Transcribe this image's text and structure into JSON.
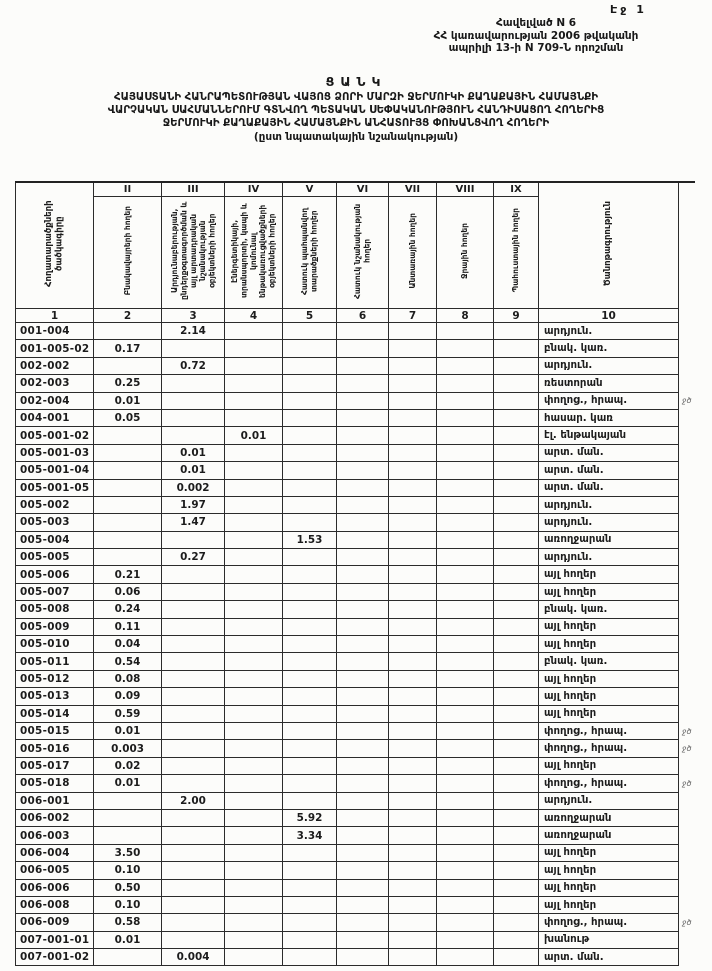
{
  "page": {
    "page_label": "Էջ 1"
  },
  "appendix": {
    "lines": [
      "Հավելված N 6",
      "ՀՀ կառավարության 2006 թվականի",
      "ապրիլի 13-ի N 709-Ն որոշման"
    ]
  },
  "title": {
    "heading": "ՑԱՆԿ",
    "lines": [
      "ՀԱՅԱՍՏԱՆԻ ՀԱՆՐԱՊԵՏՈՒԹՅԱՆ ՎԱՅՈՑ ՁՈՐԻ ՄԱՐԶԻ ՋԵՐՄՈՒԿԻ ՔԱՂԱՔԱՅԻՆ ՀԱՄԱՅՆՔԻ",
      "ՎԱՐՉԱԿԱՆ ՍԱՀՄԱՆՆԵՐՈՒՄ ԳՏՆՎՈՂ ՊԵՏԱԿԱՆ ՍԵՓԱԿԱՆՈՒԹՅՈՒՆ ՀԱՆԴԻՍԱՑՈՂ ՀՈՂԵՐԻՑ",
      "ՋԵՐՄՈՒԿԻ ՔԱՂԱՔԱՅԻՆ ՀԱՄԱՅՆՔԻՆ ԱՆՀԱՏՈՒՅՑ ՓՈԽԱՆՑՎՈՂ ՀՈՂԵՐԻ"
    ],
    "subtitle": "(ըստ նպատակային նշանակության)"
  },
  "table": {
    "headers": {
      "code": "Հողատարածքների ծածկագիրը",
      "note": "Ծանոթագրություն"
    },
    "roman_numerals": [
      "II",
      "III",
      "IV",
      "V",
      "VI",
      "VII",
      "VIII",
      "IX"
    ],
    "value_headers": [
      "Բնակավայրերի հողեր",
      "Արդյունաբերության, ընդերքօգտագործման և այլ արտադրական նշանակության օբյեկտների հողեր",
      "Էներգետիկայի, տրանսպորտի, կապի և կոմունալ ենթակառուցվածքների օբյեկտների հողեր",
      "Հատուկ պահպանվող տարածքների հողեր",
      "Հատուկ նշանակության հողեր",
      "Անտառային հողեր",
      "Ջրային հողեր",
      "Պահուստային հողեր"
    ],
    "column_numbers": [
      "1",
      "2",
      "3",
      "4",
      "5",
      "6",
      "7",
      "8",
      "9",
      "10"
    ],
    "rows": [
      [
        "001-004",
        "",
        "2.14",
        "",
        "",
        "",
        "",
        "",
        "",
        "արդյուն.",
        ""
      ],
      [
        "001-005-02",
        "0.17",
        "",
        "",
        "",
        "",
        "",
        "",
        "",
        "բնակ. կառ.",
        ""
      ],
      [
        "002-002",
        "",
        "0.72",
        "",
        "",
        "",
        "",
        "",
        "",
        "արդյուն.",
        ""
      ],
      [
        "002-003",
        "0.25",
        "",
        "",
        "",
        "",
        "",
        "",
        "",
        "ռեստորան",
        ""
      ],
      [
        "002-004",
        "0.01",
        "",
        "",
        "",
        "",
        "",
        "",
        "",
        "փողոց., հրապ.",
        "ջծ"
      ],
      [
        "004-001",
        "0.05",
        "",
        "",
        "",
        "",
        "",
        "",
        "",
        "հասար. կառ",
        ""
      ],
      [
        "005-001-02",
        "",
        "",
        "0.01",
        "",
        "",
        "",
        "",
        "",
        "էլ. ենթակայան",
        ""
      ],
      [
        "005-001-03",
        "",
        "0.01",
        "",
        "",
        "",
        "",
        "",
        "",
        "արտ. ման.",
        ""
      ],
      [
        "005-001-04",
        "",
        "0.01",
        "",
        "",
        "",
        "",
        "",
        "",
        "արտ. ման.",
        ""
      ],
      [
        "005-001-05",
        "",
        "0.002",
        "",
        "",
        "",
        "",
        "",
        "",
        "արտ. ման.",
        ""
      ],
      [
        "005-002",
        "",
        "1.97",
        "",
        "",
        "",
        "",
        "",
        "",
        "արդյուն.",
        ""
      ],
      [
        "005-003",
        "",
        "1.47",
        "",
        "",
        "",
        "",
        "",
        "",
        "արդյուն.",
        ""
      ],
      [
        "005-004",
        "",
        "",
        "",
        "1.53",
        "",
        "",
        "",
        "",
        "առողջարան",
        ""
      ],
      [
        "005-005",
        "",
        "0.27",
        "",
        "",
        "",
        "",
        "",
        "",
        "արդյուն.",
        ""
      ],
      [
        "005-006",
        "0.21",
        "",
        "",
        "",
        "",
        "",
        "",
        "",
        "այլ հողեր",
        ""
      ],
      [
        "005-007",
        "0.06",
        "",
        "",
        "",
        "",
        "",
        "",
        "",
        "այլ հողեր",
        ""
      ],
      [
        "005-008",
        "0.24",
        "",
        "",
        "",
        "",
        "",
        "",
        "",
        "բնակ. կառ.",
        ""
      ],
      [
        "005-009",
        "0.11",
        "",
        "",
        "",
        "",
        "",
        "",
        "",
        "այլ հողեր",
        ""
      ],
      [
        "005-010",
        "0.04",
        "",
        "",
        "",
        "",
        "",
        "",
        "",
        "այլ հողեր",
        ""
      ],
      [
        "005-011",
        "0.54",
        "",
        "",
        "",
        "",
        "",
        "",
        "",
        "բնակ. կառ.",
        ""
      ],
      [
        "005-012",
        "0.08",
        "",
        "",
        "",
        "",
        "",
        "",
        "",
        "այլ հողեր",
        ""
      ],
      [
        "005-013",
        "0.09",
        "",
        "",
        "",
        "",
        "",
        "",
        "",
        "այլ հողեր",
        ""
      ],
      [
        "005-014",
        "0.59",
        "",
        "",
        "",
        "",
        "",
        "",
        "",
        "այլ հողեր",
        ""
      ],
      [
        "005-015",
        "0.01",
        "",
        "",
        "",
        "",
        "",
        "",
        "",
        "փողոց., հրապ.",
        "ջծ"
      ],
      [
        "005-016",
        "0.003",
        "",
        "",
        "",
        "",
        "",
        "",
        "",
        "փողոց., հրապ.",
        "ջծ"
      ],
      [
        "005-017",
        "0.02",
        "",
        "",
        "",
        "",
        "",
        "",
        "",
        "այլ հողեր",
        ""
      ],
      [
        "005-018",
        "0.01",
        "",
        "",
        "",
        "",
        "",
        "",
        "",
        "փողոց., հրապ.",
        "ջծ"
      ],
      [
        "006-001",
        "",
        "2.00",
        "",
        "",
        "",
        "",
        "",
        "",
        "արդյուն.",
        ""
      ],
      [
        "006-002",
        "",
        "",
        "",
        "5.92",
        "",
        "",
        "",
        "",
        "առողջարան",
        ""
      ],
      [
        "006-003",
        "",
        "",
        "",
        "3.34",
        "",
        "",
        "",
        "",
        "առողջարան",
        ""
      ],
      [
        "006-004",
        "3.50",
        "",
        "",
        "",
        "",
        "",
        "",
        "",
        "այլ հողեր",
        ""
      ],
      [
        "006-005",
        "0.10",
        "",
        "",
        "",
        "",
        "",
        "",
        "",
        "այլ հողեր",
        ""
      ],
      [
        "006-006",
        "0.50",
        "",
        "",
        "",
        "",
        "",
        "",
        "",
        "այլ հողեր",
        ""
      ],
      [
        "006-008",
        "0.10",
        "",
        "",
        "",
        "",
        "",
        "",
        "",
        "այլ հողեր",
        ""
      ],
      [
        "006-009",
        "0.58",
        "",
        "",
        "",
        "",
        "",
        "",
        "",
        "փողոց., հրապ.",
        "ջծ"
      ],
      [
        "007-001-01",
        "0.01",
        "",
        "",
        "",
        "",
        "",
        "",
        "",
        "խանութ",
        ""
      ],
      [
        "007-001-02",
        "",
        "0.004",
        "",
        "",
        "",
        "",
        "",
        "",
        "արտ. ման.",
        ""
      ]
    ]
  }
}
